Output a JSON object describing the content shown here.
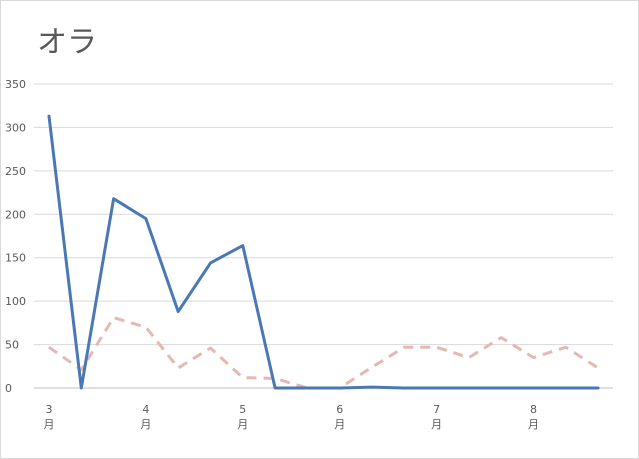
{
  "chart_data": {
    "type": "line",
    "title": "オラ",
    "xlabel": "",
    "ylabel": "",
    "ylim": [
      0,
      350
    ],
    "yticks": [
      0,
      50,
      100,
      150,
      200,
      250,
      300,
      350
    ],
    "grid": true,
    "x_tick_labels": [
      {
        "num": "3",
        "unit": "月"
      },
      {
        "num": "4",
        "unit": "月"
      },
      {
        "num": "5",
        "unit": "月"
      },
      {
        "num": "6",
        "unit": "月"
      },
      {
        "num": "7",
        "unit": "月"
      },
      {
        "num": "8",
        "unit": "月"
      }
    ],
    "points_per_month": 3,
    "series": [
      {
        "color": "#4a78b5",
        "dash": "solid",
        "values": [
          313,
          0,
          218,
          195,
          88,
          144,
          164,
          0,
          0,
          0,
          1,
          0,
          0,
          0,
          0,
          0,
          0,
          0
        ]
      },
      {
        "color": "#e5b8b4",
        "dash": "dashed",
        "values": [
          47,
          21,
          81,
          70,
          23,
          46,
          12,
          11,
          0,
          0,
          24,
          47,
          47,
          35,
          58,
          35,
          47,
          23
        ]
      }
    ]
  }
}
